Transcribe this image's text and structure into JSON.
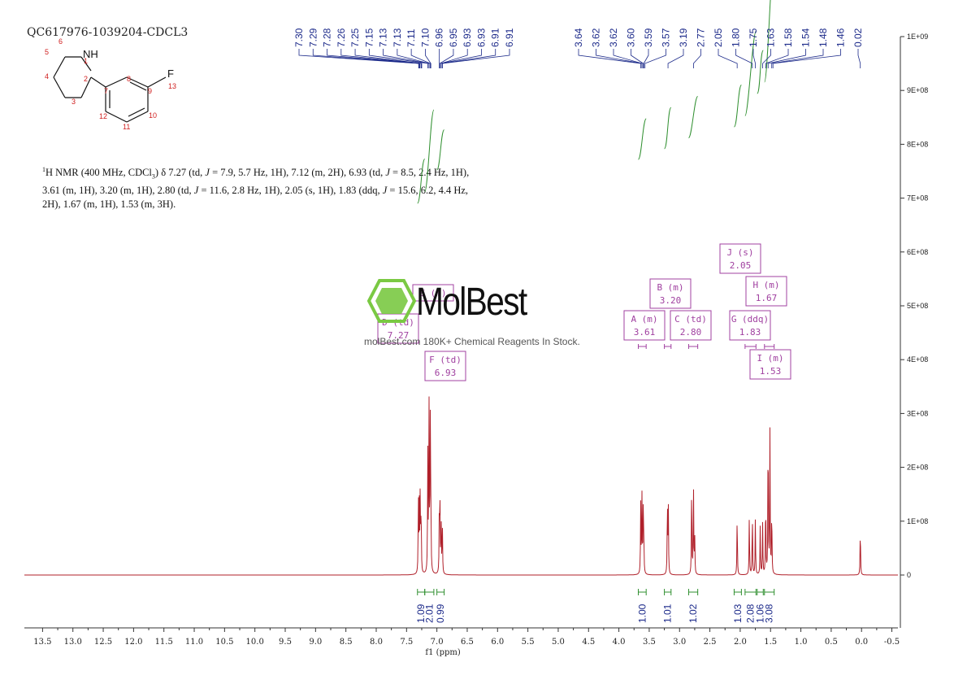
{
  "sample_id": "QC617976-1039204-CDCL3",
  "molecule": {
    "atom_labels": [
      "NH",
      "1",
      "2",
      "3",
      "4",
      "5",
      "6",
      "7",
      "8",
      "9",
      "10",
      "11",
      "12",
      "13",
      "F"
    ]
  },
  "nmr_description": {
    "line1_a": "1",
    "line1_b": "H NMR (400 MHz, CDCl",
    "line1_sub": "3",
    "line1_c": ") δ 7.27 (td, ",
    "j": "J",
    "line1_d": " = 7.9, 5.7 Hz, 1H), 7.12 (m, 2H), 6.93 (td, ",
    "line1_e": " = 8.5, 2.4 Hz, 1H),",
    "line2_a": "3.61 (m, 1H), 3.20 (m, 1H), 2.80 (td, ",
    "line2_b": " = 11.6, 2.8 Hz, 1H), 2.05 (s, 1H), 1.83 (ddq, ",
    "line2_c": " = 15.6, 6.2, 4.4 Hz,",
    "line3": "2H), 1.67 (m, 1H), 1.53 (m, 3H)."
  },
  "watermark": {
    "brand": "MolBest",
    "tagline": "molBest.com 180K+ Chemical Reagents In Stock.",
    "logo_color": "#7ac943",
    "text_color": "#111111"
  },
  "colors": {
    "spectrum": "#b0202a",
    "peak_label": "#1c2a8a",
    "integral": "#2f8f2f",
    "multiplet_box": "#a040a0",
    "axis": "#333333"
  },
  "chart_data": {
    "type": "line",
    "xlabel": "f1 (ppm)",
    "x_reversed": true,
    "xlim": [
      13.8,
      -0.6
    ],
    "x_ticks": [
      "13.5",
      "13.0",
      "12.5",
      "12.0",
      "11.5",
      "11.0",
      "10.5",
      "10.0",
      "9.5",
      "9.0",
      "8.5",
      "8.0",
      "7.5",
      "7.0",
      "6.5",
      "6.0",
      "5.5",
      "5.0",
      "4.5",
      "4.0",
      "3.5",
      "3.0",
      "2.5",
      "2.0",
      "1.5",
      "1.0",
      "0.5",
      "0.0",
      "-0.5"
    ],
    "ylim": [
      -100000000.0,
      1000000000.0
    ],
    "y_ticks": [
      "1E+09",
      "9E+08",
      "8E+08",
      "7E+08",
      "6E+08",
      "5E+08",
      "4E+08",
      "3E+08",
      "2E+08",
      "1E+08",
      "0"
    ],
    "y_tick_values": [
      1000000000.0,
      900000000.0,
      800000000.0,
      700000000.0,
      600000000.0,
      500000000.0,
      400000000.0,
      300000000.0,
      200000000.0,
      100000000.0,
      0
    ],
    "peaks": [
      {
        "ppm": 7.305,
        "h": 145000000.0
      },
      {
        "ppm": 7.29,
        "h": 120000000.0
      },
      {
        "ppm": 7.275,
        "h": 150000000.0
      },
      {
        "ppm": 7.26,
        "h": 125000000.0
      },
      {
        "ppm": 7.15,
        "h": 225000000.0
      },
      {
        "ppm": 7.13,
        "h": 315000000.0
      },
      {
        "ppm": 7.11,
        "h": 275000000.0
      },
      {
        "ppm": 7.1,
        "h": 135000000.0
      },
      {
        "ppm": 6.96,
        "h": 105000000.0
      },
      {
        "ppm": 6.95,
        "h": 135000000.0
      },
      {
        "ppm": 6.93,
        "h": 100000000.0
      },
      {
        "ppm": 6.91,
        "h": 95000000.0
      },
      {
        "ppm": 3.64,
        "h": 130000000.0
      },
      {
        "ppm": 3.62,
        "h": 145000000.0
      },
      {
        "ppm": 3.6,
        "h": 110000000.0
      },
      {
        "ppm": 3.59,
        "h": 80000000.0
      },
      {
        "ppm": 3.2,
        "h": 140000000.0
      },
      {
        "ppm": 3.185,
        "h": 125000000.0
      },
      {
        "ppm": 2.8,
        "h": 175000000.0
      },
      {
        "ppm": 2.77,
        "h": 160000000.0
      },
      {
        "ppm": 2.75,
        "h": 70000000.0
      },
      {
        "ppm": 2.05,
        "h": 115000000.0
      },
      {
        "ppm": 1.85,
        "h": 110000000.0
      },
      {
        "ppm": 1.8,
        "h": 115000000.0
      },
      {
        "ppm": 1.75,
        "h": 105000000.0
      },
      {
        "ppm": 1.67,
        "h": 90000000.0
      },
      {
        "ppm": 1.63,
        "h": 95000000.0
      },
      {
        "ppm": 1.58,
        "h": 145000000.0
      },
      {
        "ppm": 1.54,
        "h": 285000000.0
      },
      {
        "ppm": 1.51,
        "h": 265000000.0
      },
      {
        "ppm": 1.48,
        "h": 125000000.0
      },
      {
        "ppm": 0.02,
        "h": 90000000.0
      }
    ],
    "peak_labels_aromatic": [
      "7.30",
      "7.29",
      "7.28",
      "7.26",
      "7.25",
      "7.15",
      "7.13",
      "7.13",
      "7.11",
      "7.10",
      "6.96",
      "6.95",
      "6.93",
      "6.93",
      "6.91",
      "6.91"
    ],
    "peak_labels_aliphatic": [
      "3.64",
      "3.62",
      "3.62",
      "3.60",
      "3.59",
      "3.57",
      "3.19",
      "2.77",
      "2.05",
      "1.80",
      "1.75",
      "1.63",
      "1.58",
      "1.54",
      "1.48",
      "1.46",
      "0.02"
    ],
    "integrations": [
      {
        "from": 7.32,
        "to": 7.2,
        "value": "1.09"
      },
      {
        "from": 7.2,
        "to": 7.05,
        "value": "2.01"
      },
      {
        "from": 7.0,
        "to": 6.88,
        "value": "0.99"
      },
      {
        "from": 3.68,
        "to": 3.55,
        "value": "1.00"
      },
      {
        "from": 3.25,
        "to": 3.14,
        "value": "1.01"
      },
      {
        "from": 2.85,
        "to": 2.7,
        "value": "1.02"
      },
      {
        "from": 2.1,
        "to": 1.98,
        "value": "1.03"
      },
      {
        "from": 1.92,
        "to": 1.74,
        "value": "2.08"
      },
      {
        "from": 1.72,
        "to": 1.62,
        "value": "1.06"
      },
      {
        "from": 1.6,
        "to": 1.44,
        "value": "3.08"
      }
    ],
    "multiplets": [
      {
        "label": "E (m)",
        "shift": ""
      },
      {
        "label": "D (td)",
        "shift": "7.27"
      },
      {
        "label": "F (td)",
        "shift": "6.93"
      },
      {
        "label": "A (m)",
        "shift": "3.61"
      },
      {
        "label": "B (m)",
        "shift": "3.20"
      },
      {
        "label": "C (td)",
        "shift": "2.80"
      },
      {
        "label": "J (s)",
        "shift": "2.05"
      },
      {
        "label": "G (ddq)",
        "shift": "1.83"
      },
      {
        "label": "H (m)",
        "shift": "1.67"
      },
      {
        "label": "I (m)",
        "shift": "1.53"
      }
    ]
  }
}
